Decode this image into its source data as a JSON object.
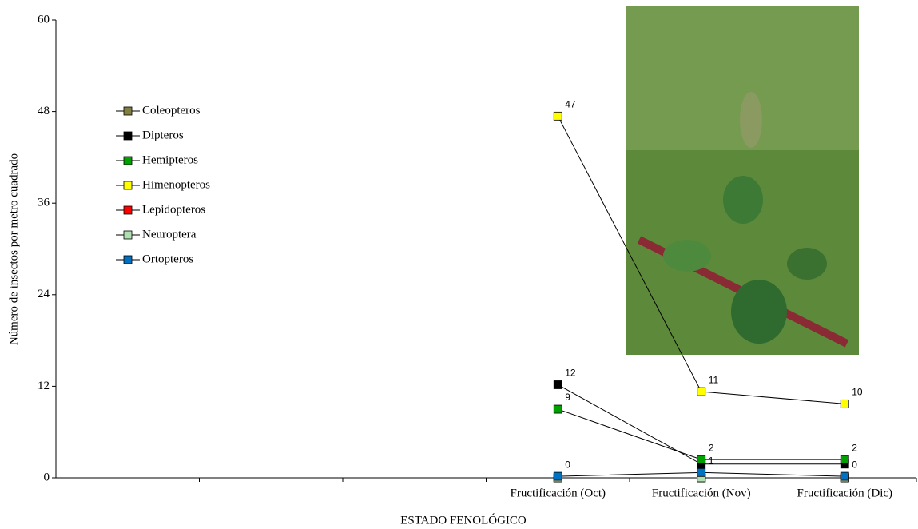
{
  "chart_data": {
    "type": "line",
    "y_label": "Número de insectos por metro cuadrado",
    "x_label": "ESTADO FENOLÓGICO",
    "categories": [
      null,
      null,
      null,
      "Fructificación (Oct)",
      "Fructificación (Nov)",
      "Fructificación (Dic)"
    ],
    "ylim": [
      0,
      60
    ],
    "yticks": [
      0,
      12,
      24,
      36,
      48,
      60
    ],
    "line_color": "#000000",
    "series": [
      {
        "name": "Coleopteros",
        "color": "#808040",
        "values": [
          null,
          null,
          null,
          0,
          0,
          0
        ]
      },
      {
        "name": "Dipteros",
        "color": "#000000",
        "values": [
          null,
          null,
          null,
          12.2,
          1.8,
          1.8
        ],
        "value_labels": [
          null,
          null,
          null,
          "12",
          null,
          null
        ]
      },
      {
        "name": "Hemipteros",
        "color": "#00a000",
        "values": [
          null,
          null,
          null,
          9,
          2.4,
          2.4
        ],
        "value_labels": [
          null,
          null,
          null,
          "9",
          "2",
          "2"
        ]
      },
      {
        "name": "Himenopteros",
        "color": "#ffff00",
        "values": [
          null,
          null,
          null,
          47.4,
          11.3,
          9.7
        ],
        "value_labels": [
          null,
          null,
          null,
          "47",
          "11",
          "10"
        ]
      },
      {
        "name": "Lepidopteros",
        "color": "#ff0000",
        "values": [
          null,
          null,
          null,
          0,
          0,
          0
        ]
      },
      {
        "name": "Neuroptera",
        "color": "#b0e0b0",
        "values": [
          null,
          null,
          null,
          0,
          0,
          0
        ]
      },
      {
        "name": "Ortopteros",
        "color": "#0070c0",
        "values": [
          null,
          null,
          null,
          0.2,
          0.7,
          0.2
        ],
        "value_labels": [
          null,
          null,
          null,
          "0",
          "1",
          "0"
        ]
      }
    ]
  }
}
